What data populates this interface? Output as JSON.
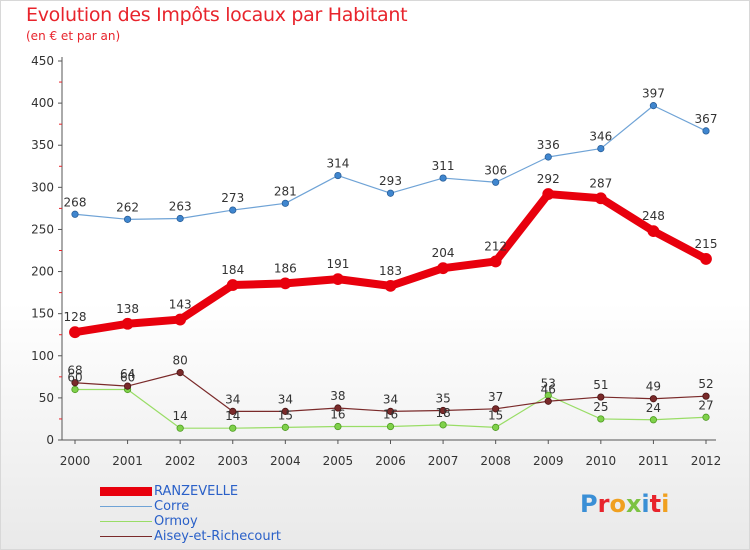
{
  "title": "Evolution des Impôts locaux par Habitant",
  "subtitle": "(en € et par an)",
  "logo_text": "Proxiti",
  "logo_colors": [
    "#3a8fd6",
    "#e8242c",
    "#f0a020",
    "#7cc242",
    "#3a8fd6",
    "#e8242c",
    "#f0a020"
  ],
  "chart_data": {
    "type": "line",
    "x": [
      "2000",
      "2001",
      "2002",
      "2003",
      "2004",
      "2005",
      "2006",
      "2007",
      "2008",
      "2009",
      "2010",
      "2011",
      "2012"
    ],
    "ylim": [
      0,
      450
    ],
    "yticks": [
      "0",
      "50",
      "100",
      "150",
      "200",
      "250",
      "300",
      "350",
      "400",
      "450"
    ],
    "grid": false,
    "legend_position": "bottom-left",
    "series": [
      {
        "name": "RANZEVELLE",
        "color": "#e8000d",
        "values": [
          128,
          138,
          143,
          184,
          186,
          191,
          183,
          204,
          212,
          292,
          287,
          248,
          215
        ],
        "labels": [
          "128",
          "138",
          "143",
          "184",
          "186",
          "191",
          "183",
          "204",
          "212",
          "292",
          "287",
          "248",
          "215"
        ]
      },
      {
        "name": "Corre",
        "color": "#6fa3d6",
        "values": [
          268,
          262,
          263,
          273,
          281,
          314,
          293,
          311,
          306,
          336,
          346,
          397,
          367
        ],
        "labels": [
          "268",
          "262",
          "263",
          "273",
          "281",
          "314",
          "293",
          "311",
          "306",
          "336",
          "346",
          "397",
          "367"
        ]
      },
      {
        "name": "Ormoy",
        "color": "#99dd66",
        "values": [
          60,
          60,
          14,
          14,
          15,
          16,
          16,
          18,
          15,
          53,
          25,
          24,
          27
        ],
        "labels": [
          "60",
          "60",
          "14",
          "14",
          "15",
          "16",
          "16",
          "18",
          "15",
          "53",
          "25",
          "24",
          "27"
        ]
      },
      {
        "name": "Aisey-et-Richecourt",
        "color": "#7a2a2a",
        "values": [
          68,
          64,
          80,
          34,
          34,
          38,
          34,
          35,
          37,
          46,
          51,
          49,
          52
        ],
        "labels": [
          "68",
          "64",
          "80",
          "34",
          "34",
          "38",
          "34",
          "35",
          "37",
          "46",
          "51",
          "49",
          "52"
        ]
      }
    ]
  }
}
